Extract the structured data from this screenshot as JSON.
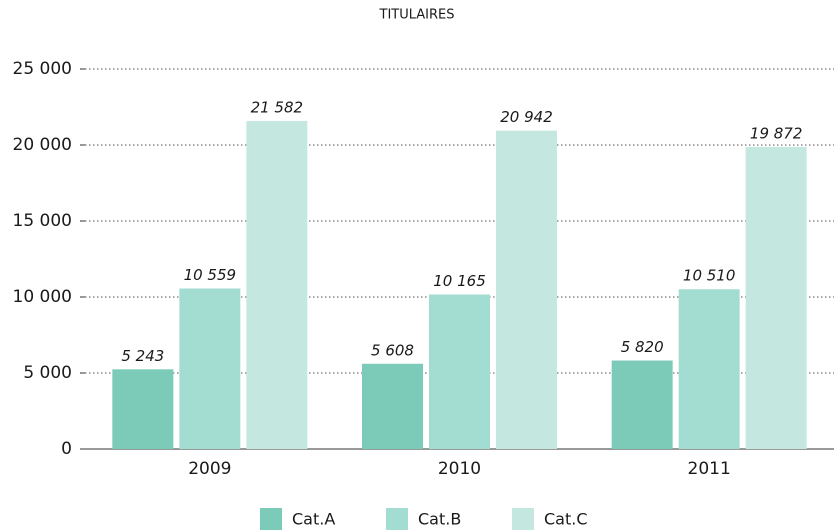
{
  "chart_data": {
    "type": "bar",
    "title": "TITULAIRES",
    "categories": [
      "2009",
      "2010",
      "2011"
    ],
    "series": [
      {
        "name": "Cat.A",
        "color": "#7ccbb9",
        "values": [
          5243,
          5608,
          5820
        ],
        "value_labels": [
          "5 243",
          "5 608",
          "5 820"
        ]
      },
      {
        "name": "Cat.B",
        "color": "#a3dcd0",
        "values": [
          10559,
          10165,
          10510
        ],
        "value_labels": [
          "10 559",
          "10 165",
          "10 510"
        ]
      },
      {
        "name": "Cat.C",
        "color": "#c4e7df",
        "values": [
          21582,
          20942,
          19872
        ],
        "value_labels": [
          "21 582",
          "20 942",
          "19 872"
        ]
      }
    ],
    "ylim": [
      0,
      25000
    ],
    "yticks": [
      0,
      {
        "value": 5000,
        "label": "5 000"
      },
      {
        "value": 10000,
        "label": "10 000"
      },
      {
        "value": 15000,
        "label": "15 000"
      },
      {
        "value": 20000,
        "label": "20 000"
      },
      {
        "value": 25000,
        "label": "25 000"
      }
    ],
    "grid": true,
    "legend": "bottom"
  }
}
